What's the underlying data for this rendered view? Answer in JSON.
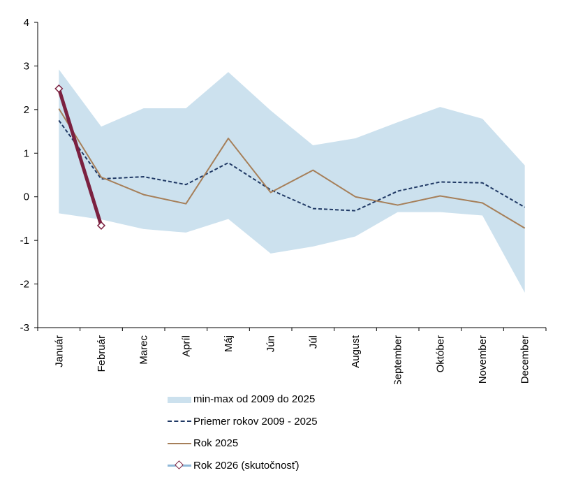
{
  "chart_data": {
    "type": "line",
    "title": "",
    "xlabel": "",
    "ylabel": "",
    "ylim": [
      -3,
      4
    ],
    "yticks": [
      4,
      3,
      2,
      1,
      0,
      -1,
      -2,
      -3
    ],
    "ytick_labels": [
      "4",
      "3",
      "2",
      "1",
      "0",
      "-1",
      "-2",
      "-3"
    ],
    "grid": false,
    "legend_position": "bottom",
    "categories": [
      "Január",
      "Február",
      "Marec",
      "Apríl",
      "Máj",
      "Jún",
      "Júl",
      "August",
      "September",
      "Október",
      "November",
      "December"
    ],
    "band": {
      "name": "min-max od 2009 do 2025",
      "color": "#cce1ee",
      "min": [
        -0.38,
        -0.52,
        -0.74,
        -0.82,
        -0.51,
        -1.3,
        -1.14,
        -0.91,
        -0.35,
        -0.35,
        -0.43,
        -2.2
      ],
      "max": [
        2.92,
        1.61,
        2.03,
        2.03,
        2.86,
        1.98,
        1.18,
        1.34,
        1.71,
        2.06,
        1.79,
        0.72
      ]
    },
    "series": [
      {
        "name": "Priemer rokov 2009 - 2025",
        "style": "dashed",
        "color": "#1f3864",
        "values": [
          1.75,
          0.41,
          0.46,
          0.28,
          0.78,
          0.16,
          -0.27,
          -0.32,
          0.13,
          0.34,
          0.32,
          -0.24
        ]
      },
      {
        "name": "Rok 2025",
        "style": "solid",
        "color": "#a67f59",
        "values": [
          2.02,
          0.45,
          0.05,
          -0.16,
          1.34,
          0.1,
          0.61,
          0.0,
          -0.19,
          0.02,
          -0.14,
          -0.72
        ]
      },
      {
        "name": "Rok 2026 (skutočnosť)",
        "style": "solid-marker",
        "color": "#7b2140",
        "legend_line_color": "#8fb8d8",
        "values": [
          2.48,
          -0.66,
          null,
          null,
          null,
          null,
          null,
          null,
          null,
          null,
          null,
          null
        ]
      }
    ]
  },
  "legend": {
    "items": [
      {
        "label": "min-max od 2009 do 2025"
      },
      {
        "label": "Priemer rokov 2009 - 2025"
      },
      {
        "label": "Rok 2025"
      },
      {
        "label": "Rok 2026 (skutočnosť)"
      }
    ]
  }
}
